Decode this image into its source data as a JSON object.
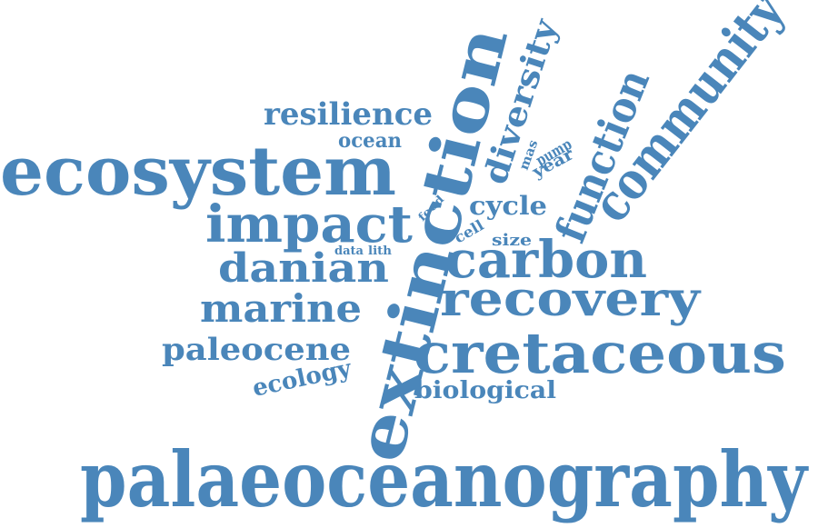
{
  "word_cloud": {
    "color": "#4A86BA",
    "words": [
      {
        "text": "palaeoceanography"
      },
      {
        "text": "extinction"
      },
      {
        "text": "ecosystem"
      },
      {
        "text": "community"
      },
      {
        "text": "cretaceous"
      },
      {
        "text": "recovery"
      },
      {
        "text": "carbon"
      },
      {
        "text": "impact"
      },
      {
        "text": "function"
      },
      {
        "text": "diversity"
      },
      {
        "text": "danian"
      },
      {
        "text": "marine"
      },
      {
        "text": "paleocene"
      },
      {
        "text": "resilience"
      },
      {
        "text": "biological"
      },
      {
        "text": "ecology"
      },
      {
        "text": "cycle"
      },
      {
        "text": "ocean"
      },
      {
        "text": "size"
      },
      {
        "text": "cell"
      },
      {
        "text": "year"
      },
      {
        "text": "pump"
      },
      {
        "text": "mas"
      },
      {
        "text": "food"
      },
      {
        "text": "data"
      },
      {
        "text": "lith"
      }
    ]
  }
}
